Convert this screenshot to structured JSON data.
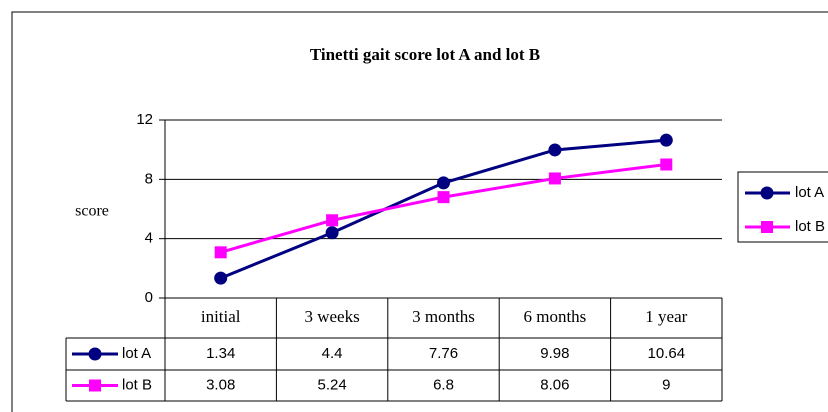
{
  "chart_data": {
    "type": "line",
    "title": "Tinetti gait score lot A and lot B",
    "y_label": "score",
    "categories": [
      "initial",
      "3 weeks",
      "3 months",
      "6 months",
      "1 year"
    ],
    "series": [
      {
        "name": "lot A",
        "color": "#000080",
        "marker": "circle",
        "values": [
          1.34,
          4.4,
          7.76,
          9.98,
          10.64
        ]
      },
      {
        "name": "lot B",
        "color": "#ff00ff",
        "marker": "square",
        "values": [
          3.08,
          5.24,
          6.8,
          8.06,
          9
        ]
      }
    ],
    "ylim": [
      0,
      12
    ],
    "yticks": [
      0,
      4,
      8,
      12
    ],
    "grid": true,
    "legend": "right",
    "data_table": true
  }
}
